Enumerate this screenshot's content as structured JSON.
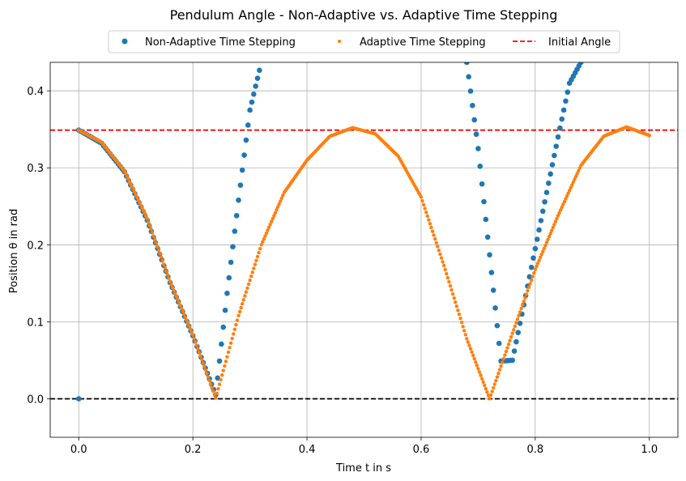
{
  "chart_data": {
    "type": "scatter",
    "title": "Pendulum Angle - Non-Adaptive vs. Adaptive Time Stepping",
    "xlabel": "Time t in s",
    "ylabel": "Position θ in rad",
    "xlim": [
      -0.05,
      1.05
    ],
    "ylim": [
      -0.05,
      0.437
    ],
    "grid": true,
    "legend_placement": "top-center",
    "x_ticks": [
      "0.0",
      "0.2",
      "0.4",
      "0.6",
      "0.8",
      "1.0"
    ],
    "y_ticks": [
      "0.0",
      "0.1",
      "0.2",
      "0.3",
      "0.4"
    ],
    "series": [
      {
        "name": "Non-Adaptive Time Stepping",
        "style": "points",
        "color": "#1f77b4",
        "x": [
          0.0,
          0.0,
          0.04,
          0.08,
          0.12,
          0.16,
          0.2,
          0.24,
          0.26,
          0.28,
          0.3,
          0.32,
          0.68,
          0.7,
          0.72,
          0.74,
          0.76,
          0.78,
          0.8,
          0.82,
          0.84,
          0.86,
          0.88
        ],
        "y": [
          0.0,
          0.349,
          0.332,
          0.295,
          0.232,
          0.151,
          0.082,
          0.005,
          0.137,
          0.258,
          0.375,
          0.437,
          0.437,
          0.325,
          0.187,
          0.049,
          0.05,
          0.122,
          0.195,
          0.268,
          0.34,
          0.41,
          0.437
        ]
      },
      {
        "name": "Adaptive Time Stepping",
        "style": "points",
        "color": "#ff7f0e",
        "x": [
          0.0,
          0.04,
          0.08,
          0.12,
          0.16,
          0.2,
          0.24,
          0.28,
          0.32,
          0.36,
          0.4,
          0.44,
          0.48,
          0.52,
          0.56,
          0.6,
          0.64,
          0.68,
          0.72,
          0.76,
          0.8,
          0.84,
          0.88,
          0.92,
          0.96,
          1.0
        ],
        "y": [
          0.349,
          0.333,
          0.296,
          0.234,
          0.152,
          0.083,
          0.001,
          0.108,
          0.2,
          0.268,
          0.31,
          0.341,
          0.352,
          0.344,
          0.315,
          0.262,
          0.173,
          0.078,
          0.0,
          0.085,
          0.168,
          0.238,
          0.303,
          0.341,
          0.353,
          0.342
        ]
      },
      {
        "name": "Initial Angle",
        "style": "dashed",
        "color": "#ff0000",
        "y": 0.349
      }
    ],
    "reference_line": {
      "y": 0.0,
      "color": "#000000",
      "style": "dashed"
    }
  }
}
